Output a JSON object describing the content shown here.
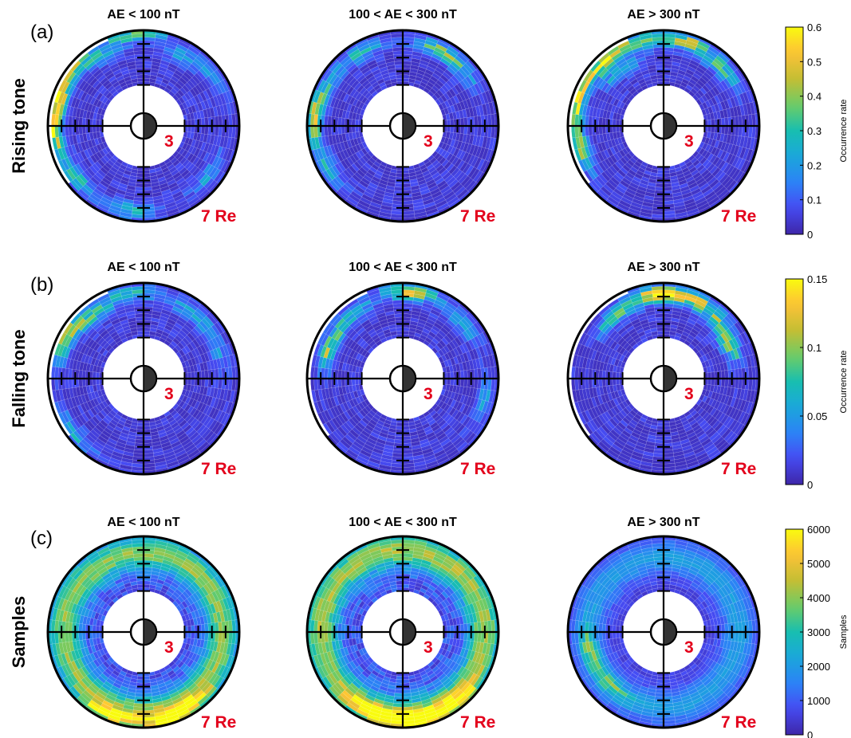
{
  "chart_data": [
    {
      "type": "heatmap",
      "panel_label": "(a)",
      "row_label": "Rising tone",
      "colorbar": {
        "label": "Occurrence rate",
        "ticks": [
          "0",
          "0.1",
          "0.2",
          "0.3",
          "0.4",
          "0.5",
          "0.6"
        ],
        "range": [
          0,
          0.6
        ]
      },
      "plots": [
        {
          "title": "AE < 100 nT",
          "inner_label": "3",
          "outer_label": "7 Re",
          "hotspots": [
            {
              "mlt": 18.2,
              "r": 6.6,
              "value": 0.55
            },
            {
              "mlt": 17.0,
              "r": 6.4,
              "value": 0.5
            },
            {
              "mlt": 15.5,
              "r": 6.6,
              "value": 0.45
            },
            {
              "mlt": 20.5,
              "r": 6.2,
              "value": 0.35
            },
            {
              "mlt": 14.0,
              "r": 6.0,
              "value": 0.25
            },
            {
              "mlt": 12.3,
              "r": 6.8,
              "value": 0.45
            },
            {
              "mlt": 10.0,
              "r": 5.8,
              "value": 0.2
            },
            {
              "mlt": 8.5,
              "r": 6.3,
              "value": 0.18
            },
            {
              "mlt": 3.5,
              "r": 6.0,
              "value": 0.2
            },
            {
              "mlt": 23.5,
              "r": 6.3,
              "value": 0.28
            }
          ]
        },
        {
          "title": "100 < AE < 300 nT",
          "inner_label": "3",
          "outer_label": "7 Re",
          "hotspots": [
            {
              "mlt": 18.0,
              "r": 6.6,
              "value": 0.45
            },
            {
              "mlt": 16.5,
              "r": 6.2,
              "value": 0.35
            },
            {
              "mlt": 14.0,
              "r": 6.2,
              "value": 0.3
            },
            {
              "mlt": 10.5,
              "r": 6.2,
              "value": 0.35
            },
            {
              "mlt": 9.0,
              "r": 6.0,
              "value": 0.25
            },
            {
              "mlt": 20.0,
              "r": 6.3,
              "value": 0.25
            }
          ]
        },
        {
          "title": "AE > 300 nT",
          "inner_label": "3",
          "outer_label": "7 Re",
          "hotspots": [
            {
              "mlt": 17.0,
              "r": 6.6,
              "value": 0.58
            },
            {
              "mlt": 15.0,
              "r": 6.4,
              "value": 0.55
            },
            {
              "mlt": 13.0,
              "r": 6.4,
              "value": 0.5
            },
            {
              "mlt": 11.0,
              "r": 6.4,
              "value": 0.48
            },
            {
              "mlt": 9.0,
              "r": 6.0,
              "value": 0.35
            },
            {
              "mlt": 19.0,
              "r": 6.2,
              "value": 0.4
            },
            {
              "mlt": 14.5,
              "r": 5.2,
              "value": 0.3
            }
          ]
        }
      ]
    },
    {
      "type": "heatmap",
      "panel_label": "(b)",
      "row_label": "Falling tone",
      "colorbar": {
        "label": "Occurrence rate",
        "ticks": [
          "0",
          "0.05",
          "0.1",
          "0.15"
        ],
        "range": [
          0,
          0.15
        ]
      },
      "plots": [
        {
          "title": "AE < 100 nT",
          "inner_label": "3",
          "outer_label": "7 Re",
          "hotspots": [
            {
              "mlt": 16.2,
              "r": 6.4,
              "value": 0.14
            },
            {
              "mlt": 14.5,
              "r": 6.0,
              "value": 0.09
            },
            {
              "mlt": 12.5,
              "r": 6.3,
              "value": 0.07
            },
            {
              "mlt": 9.5,
              "r": 6.0,
              "value": 0.07
            },
            {
              "mlt": 7.5,
              "r": 5.8,
              "value": 0.05
            },
            {
              "mlt": 20.5,
              "r": 6.5,
              "value": 0.06
            }
          ]
        },
        {
          "title": "100 < AE < 300 nT",
          "inner_label": "3",
          "outer_label": "7 Re",
          "hotspots": [
            {
              "mlt": 11.7,
              "r": 6.4,
              "value": 0.14
            },
            {
              "mlt": 16.5,
              "r": 5.8,
              "value": 0.11
            },
            {
              "mlt": 14.5,
              "r": 6.0,
              "value": 0.07
            },
            {
              "mlt": 9.0,
              "r": 6.0,
              "value": 0.07
            },
            {
              "mlt": 5.0,
              "r": 6.2,
              "value": 0.05
            }
          ]
        },
        {
          "title": "AE > 300 nT",
          "inner_label": "3",
          "outer_label": "7 Re",
          "hotspots": [
            {
              "mlt": 12.5,
              "r": 6.2,
              "value": 0.15
            },
            {
              "mlt": 11.0,
              "r": 6.2,
              "value": 0.13
            },
            {
              "mlt": 14.5,
              "r": 5.8,
              "value": 0.09
            },
            {
              "mlt": 8.0,
              "r": 5.4,
              "value": 0.12
            },
            {
              "mlt": 9.5,
              "r": 6.0,
              "value": 0.08
            }
          ]
        }
      ]
    },
    {
      "type": "heatmap",
      "panel_label": "(c)",
      "row_label": "Samples",
      "colorbar": {
        "label": "Samples",
        "ticks": [
          "0",
          "1000",
          "2000",
          "3000",
          "4000",
          "5000",
          "6000"
        ],
        "range": [
          0,
          6000
        ]
      },
      "plots": [
        {
          "title": "AE < 100 nT",
          "inner_label": "3",
          "outer_label": "7 Re",
          "ring_peak": {
            "r": 5.8,
            "value": 3200
          },
          "hotspots": [
            {
              "mlt": 1.0,
              "r": 6.7,
              "value": 5800
            },
            {
              "mlt": 22.5,
              "r": 6.5,
              "value": 5000
            },
            {
              "mlt": 2.0,
              "r": 6.3,
              "value": 4500
            }
          ]
        },
        {
          "title": "100 < AE < 300 nT",
          "inner_label": "3",
          "outer_label": "7 Re",
          "ring_peak": {
            "r": 6.0,
            "value": 3400
          },
          "hotspots": [
            {
              "mlt": 0.5,
              "r": 6.5,
              "value": 5200
            },
            {
              "mlt": 22.5,
              "r": 6.3,
              "value": 4500
            },
            {
              "mlt": 2.5,
              "r": 6.4,
              "value": 4200
            }
          ]
        },
        {
          "title": "AE > 300 nT",
          "inner_label": "3",
          "outer_label": "7 Re",
          "ring_peak": {
            "r": 5.5,
            "value": 1500
          },
          "hotspots": [
            {
              "mlt": 19.0,
              "r": 5.6,
              "value": 2600
            },
            {
              "mlt": 21.0,
              "r": 5.5,
              "value": 2300
            }
          ]
        }
      ]
    }
  ],
  "grid": {
    "r_min": 3,
    "r_max": 7,
    "r_bins": 16,
    "mlt_bins": 48
  },
  "colors": {
    "marker_text": "#e3001b",
    "axes": "#000000",
    "empty_bin": "#ffffff",
    "colormap": "parula"
  }
}
